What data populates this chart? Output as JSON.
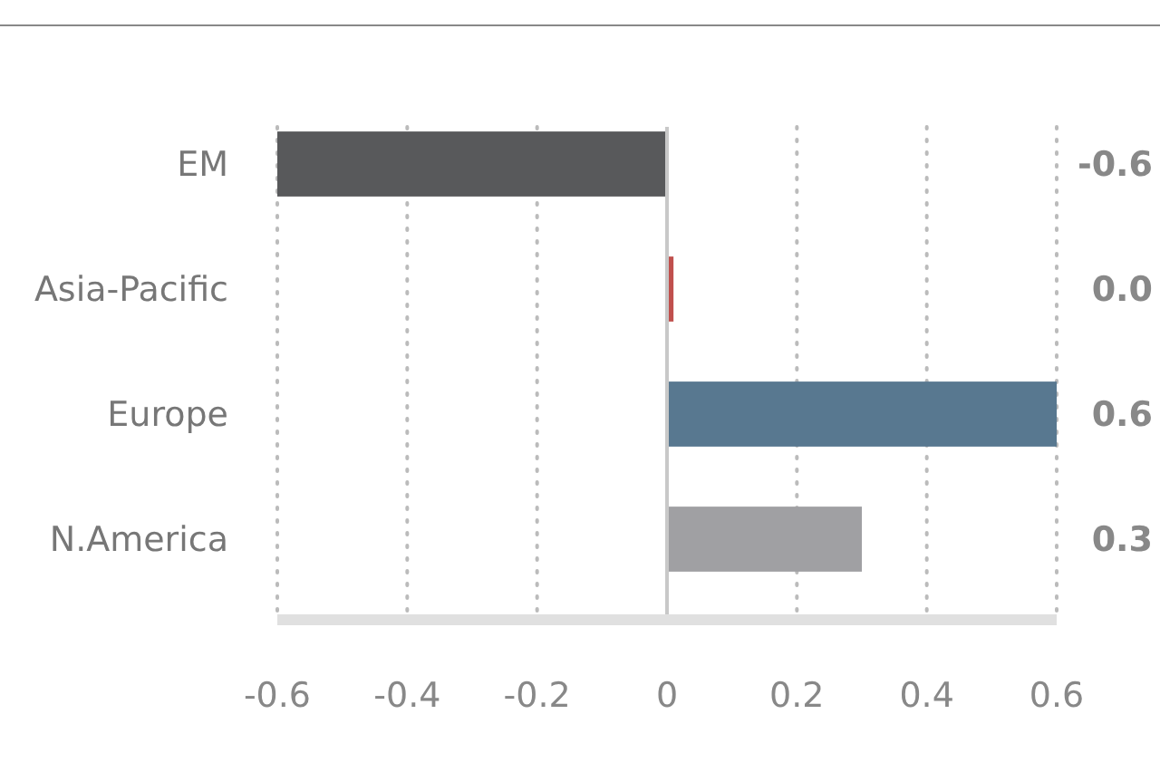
{
  "chart_data": {
    "type": "bar",
    "orientation": "horizontal",
    "categories": [
      "EM",
      "Asia-Pacific",
      "Europe",
      "N.America"
    ],
    "values": [
      -0.6,
      0.01,
      0.6,
      0.3
    ],
    "colors": [
      "#58595b",
      "#c0504d",
      "#587890",
      "#a0a0a3"
    ],
    "value_labels": [
      "-0.6",
      "0.0",
      "0.6",
      "0.3"
    ],
    "xlim": [
      -0.6,
      0.6
    ],
    "xticks": [
      -0.6,
      -0.4,
      -0.2,
      {
        "value": 0,
        "label": "0"
      },
      0.2,
      0.4,
      0.6
    ],
    "grid": "x"
  }
}
